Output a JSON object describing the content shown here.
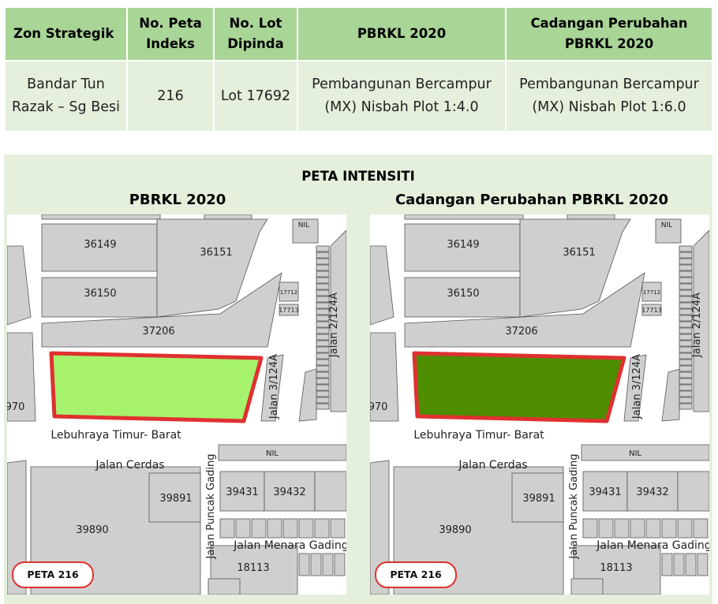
{
  "table": {
    "headers": [
      "Zon Strategik",
      "No. Peta Indeks",
      "No. Lot Dipinda",
      "PBRKL 2020",
      "Cadangan Perubahan PBRKL 2020"
    ],
    "row": [
      "Bandar Tun Razak – Sg Besi",
      "216",
      "Lot 17692",
      "Pembangunan Bercampur (MX) Nisbah Plot 1:4.0",
      "Pembangunan Bercampur (MX) Nisbah Plot 1:6.0"
    ]
  },
  "panel": {
    "title": "PETA INTENSITI",
    "maps": [
      {
        "title": "PBRKL 2020",
        "badge": "PETA 216",
        "highlight_color": "#a6f26c"
      },
      {
        "title": "Cadangan Perubahan PBRKL 2020",
        "badge": "PETA 216",
        "highlight_color": "#4e8c00"
      }
    ]
  },
  "map_labels": {
    "lots": [
      "36149",
      "36151",
      "36150",
      "37206",
      "39891",
      "39431",
      "39432",
      "39890",
      "18113",
      "17712",
      "17713",
      "970"
    ],
    "roads": [
      "Lebuhraya Timur- Barat",
      "Jalan Cerdas",
      "Jalan Puncak Gading",
      "Jalan Menara Gading",
      "Jalan 3/124A",
      "Jalan 2/124A",
      "NIL",
      "NIL"
    ]
  },
  "colors": {
    "header_bg": "#a9d597",
    "cell_bg": "#e4efdc",
    "lot_fill": "#cfcfcf",
    "outline_red": "#e03030"
  }
}
